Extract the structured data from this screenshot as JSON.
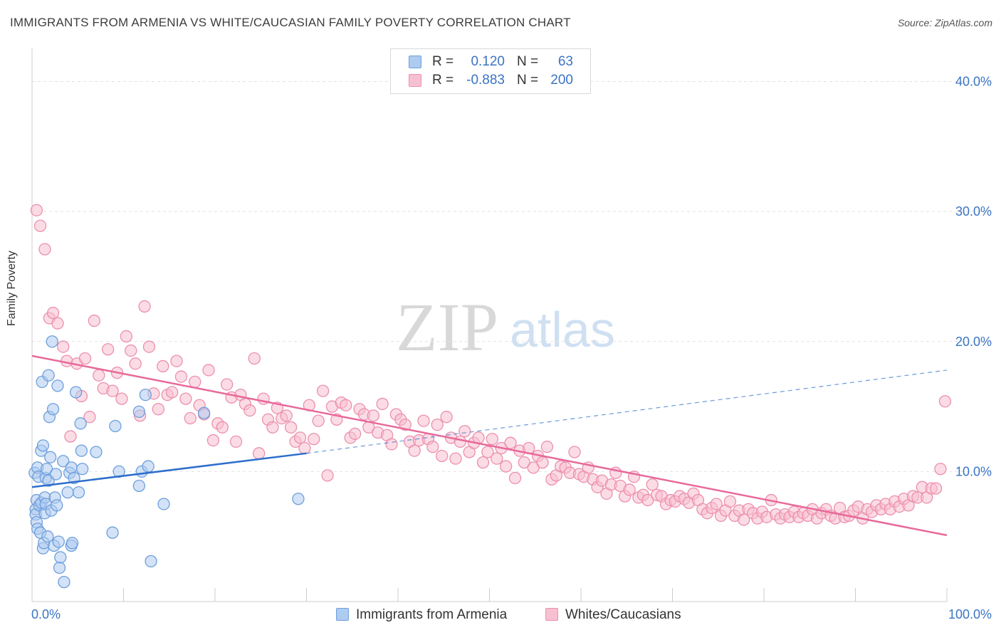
{
  "title": "IMMIGRANTS FROM ARMENIA VS WHITE/CAUCASIAN FAMILY POVERTY CORRELATION CHART",
  "source": "Source: ZipAtlas.com",
  "watermark": {
    "zip": "ZIP",
    "atlas": "atlas"
  },
  "legend": {
    "rows": [
      {
        "r_label": "R =",
        "r_value": "0.120",
        "n_label": "N =",
        "n_value": "63"
      },
      {
        "r_label": "R =",
        "r_value": "-0.883",
        "n_label": "N =",
        "n_value": "200"
      }
    ]
  },
  "bottom_legend": [
    "Immigrants from Armenia",
    "Whites/Caucasians"
  ],
  "colors": {
    "blue_fill": "#aecbf0",
    "blue_stroke": "#6d9fdc",
    "blue_line": "#2d6fcc",
    "pink_fill": "#f7c0d0",
    "pink_stroke": "#ec8fae",
    "pink_line": "#e8699a",
    "grid": "#e2e2e2",
    "tick_text": "#3a74c4"
  },
  "chart_data": {
    "type": "scatter",
    "title": "IMMIGRANTS FROM ARMENIA VS WHITE/CAUCASIAN FAMILY POVERTY CORRELATION CHART",
    "xlabel": "",
    "ylabel": "Family Poverty",
    "xlim": [
      0,
      100
    ],
    "ylim": [
      0,
      42
    ],
    "x_tick_labels": [
      "0.0%",
      "100.0%"
    ],
    "y_ticks": [
      10,
      20,
      30,
      40
    ],
    "y_tick_labels": [
      "10.0%",
      "20.0%",
      "30.0%",
      "40.0%"
    ],
    "grid": "horizontal dashed",
    "legend_position": "top-center",
    "series": [
      {
        "name": "Immigrants from Armenia",
        "R": 0.12,
        "N": 63,
        "trend": {
          "x": [
            0,
            30
          ],
          "y": [
            8.8,
            11.4
          ],
          "dashed_to": [
            100,
            17.8
          ]
        },
        "points": [
          [
            0.3,
            9.9
          ],
          [
            0.4,
            7.1
          ],
          [
            0.4,
            6.7
          ],
          [
            0.5,
            6.1
          ],
          [
            0.5,
            7.8
          ],
          [
            0.6,
            5.6
          ],
          [
            0.6,
            10.3
          ],
          [
            0.7,
            9.6
          ],
          [
            0.8,
            7.4
          ],
          [
            0.9,
            5.3
          ],
          [
            1.0,
            7.6
          ],
          [
            1.0,
            11.6
          ],
          [
            1.1,
            16.9
          ],
          [
            1.2,
            12.0
          ],
          [
            1.2,
            4.1
          ],
          [
            1.3,
            4.5
          ],
          [
            1.4,
            8.0
          ],
          [
            1.4,
            6.8
          ],
          [
            1.5,
            9.5
          ],
          [
            1.5,
            7.5
          ],
          [
            1.6,
            10.2
          ],
          [
            1.7,
            5.0
          ],
          [
            1.8,
            9.3
          ],
          [
            1.8,
            17.4
          ],
          [
            1.9,
            14.2
          ],
          [
            2.0,
            11.1
          ],
          [
            2.1,
            7.0
          ],
          [
            2.2,
            20.0
          ],
          [
            2.3,
            14.8
          ],
          [
            2.4,
            4.3
          ],
          [
            2.5,
            8.0
          ],
          [
            2.6,
            9.8
          ],
          [
            2.7,
            7.4
          ],
          [
            2.8,
            16.6
          ],
          [
            2.9,
            4.6
          ],
          [
            3.0,
            2.6
          ],
          [
            3.1,
            3.4
          ],
          [
            3.4,
            10.8
          ],
          [
            3.5,
            1.5
          ],
          [
            3.9,
            8.4
          ],
          [
            4.1,
            9.9
          ],
          [
            4.3,
            10.3
          ],
          [
            4.3,
            4.3
          ],
          [
            4.4,
            4.5
          ],
          [
            4.6,
            9.5
          ],
          [
            4.8,
            16.1
          ],
          [
            5.1,
            8.4
          ],
          [
            5.3,
            13.7
          ],
          [
            5.4,
            11.6
          ],
          [
            5.5,
            10.2
          ],
          [
            7.0,
            11.5
          ],
          [
            8.8,
            5.3
          ],
          [
            9.1,
            13.5
          ],
          [
            9.5,
            10.0
          ],
          [
            11.7,
            14.6
          ],
          [
            11.7,
            8.9
          ],
          [
            12.0,
            10.0
          ],
          [
            12.4,
            15.9
          ],
          [
            12.7,
            10.4
          ],
          [
            13.0,
            3.1
          ],
          [
            14.4,
            7.5
          ],
          [
            18.8,
            14.5
          ],
          [
            29.1,
            7.9
          ]
        ]
      },
      {
        "name": "Whites/Caucasians",
        "R": -0.883,
        "N": 200,
        "trend": {
          "x": [
            0,
            100
          ],
          "y": [
            18.9,
            5.1
          ]
        },
        "points": [
          [
            0.5,
            30.1
          ],
          [
            0.9,
            28.9
          ],
          [
            1.4,
            27.1
          ],
          [
            1.9,
            21.8
          ],
          [
            2.3,
            22.2
          ],
          [
            2.8,
            21.4
          ],
          [
            3.4,
            19.6
          ],
          [
            3.8,
            18.5
          ],
          [
            4.2,
            12.7
          ],
          [
            4.9,
            18.3
          ],
          [
            5.4,
            15.8
          ],
          [
            5.8,
            18.7
          ],
          [
            6.3,
            14.2
          ],
          [
            6.8,
            21.6
          ],
          [
            7.3,
            17.4
          ],
          [
            7.8,
            16.4
          ],
          [
            8.3,
            19.4
          ],
          [
            8.8,
            16.2
          ],
          [
            9.3,
            17.6
          ],
          [
            9.8,
            15.6
          ],
          [
            10.3,
            20.4
          ],
          [
            10.8,
            19.3
          ],
          [
            11.3,
            18.3
          ],
          [
            11.8,
            14.3
          ],
          [
            12.3,
            22.7
          ],
          [
            12.8,
            19.6
          ],
          [
            13.3,
            16.0
          ],
          [
            13.8,
            14.8
          ],
          [
            14.3,
            18.1
          ],
          [
            14.8,
            15.9
          ],
          [
            15.3,
            16.1
          ],
          [
            15.8,
            18.5
          ],
          [
            16.3,
            17.3
          ],
          [
            16.8,
            15.6
          ],
          [
            17.3,
            14.1
          ],
          [
            17.8,
            16.9
          ],
          [
            18.3,
            15.1
          ],
          [
            18.8,
            14.4
          ],
          [
            19.3,
            17.8
          ],
          [
            19.8,
            12.4
          ],
          [
            20.3,
            13.7
          ],
          [
            20.8,
            13.4
          ],
          [
            21.3,
            16.7
          ],
          [
            21.8,
            15.7
          ],
          [
            22.3,
            12.3
          ],
          [
            22.8,
            15.9
          ],
          [
            23.3,
            15.2
          ],
          [
            23.8,
            14.7
          ],
          [
            24.3,
            18.7
          ],
          [
            24.8,
            11.4
          ],
          [
            25.3,
            15.6
          ],
          [
            25.8,
            14.0
          ],
          [
            26.3,
            13.4
          ],
          [
            26.8,
            14.9
          ],
          [
            27.3,
            14.1
          ],
          [
            27.8,
            14.3
          ],
          [
            28.3,
            13.4
          ],
          [
            28.8,
            12.3
          ],
          [
            29.3,
            12.6
          ],
          [
            29.8,
            11.8
          ],
          [
            30.3,
            15.1
          ],
          [
            30.8,
            12.5
          ],
          [
            31.3,
            13.9
          ],
          [
            31.8,
            16.2
          ],
          [
            32.3,
            9.7
          ],
          [
            32.8,
            15.0
          ],
          [
            33.3,
            14.0
          ],
          [
            33.8,
            15.3
          ],
          [
            34.3,
            15.1
          ],
          [
            34.8,
            12.6
          ],
          [
            35.3,
            12.9
          ],
          [
            35.8,
            14.8
          ],
          [
            36.3,
            14.4
          ],
          [
            36.8,
            13.4
          ],
          [
            37.3,
            14.3
          ],
          [
            37.8,
            13.0
          ],
          [
            38.3,
            15.2
          ],
          [
            38.8,
            12.8
          ],
          [
            39.3,
            12.1
          ],
          [
            39.8,
            14.4
          ],
          [
            40.3,
            14.0
          ],
          [
            40.8,
            13.6
          ],
          [
            41.3,
            12.3
          ],
          [
            41.8,
            11.6
          ],
          [
            42.3,
            12.4
          ],
          [
            42.8,
            13.9
          ],
          [
            43.3,
            12.5
          ],
          [
            43.8,
            11.9
          ],
          [
            44.3,
            13.6
          ],
          [
            44.8,
            11.2
          ],
          [
            45.3,
            14.2
          ],
          [
            45.8,
            12.6
          ],
          [
            46.3,
            11.0
          ],
          [
            46.8,
            12.3
          ],
          [
            47.3,
            13.1
          ],
          [
            47.8,
            11.5
          ],
          [
            48.3,
            12.2
          ],
          [
            48.8,
            12.6
          ],
          [
            49.3,
            10.7
          ],
          [
            49.8,
            11.5
          ],
          [
            50.3,
            12.5
          ],
          [
            50.8,
            11.0
          ],
          [
            51.3,
            11.8
          ],
          [
            51.8,
            10.4
          ],
          [
            52.3,
            12.2
          ],
          [
            52.8,
            9.5
          ],
          [
            53.3,
            11.6
          ],
          [
            53.8,
            10.7
          ],
          [
            54.3,
            11.8
          ],
          [
            54.8,
            10.3
          ],
          [
            55.3,
            11.2
          ],
          [
            55.8,
            10.7
          ],
          [
            56.3,
            11.9
          ],
          [
            56.8,
            9.4
          ],
          [
            57.3,
            9.7
          ],
          [
            57.8,
            10.4
          ],
          [
            58.3,
            10.3
          ],
          [
            58.8,
            9.9
          ],
          [
            59.3,
            11.5
          ],
          [
            59.8,
            9.8
          ],
          [
            60.3,
            9.6
          ],
          [
            60.8,
            10.3
          ],
          [
            61.3,
            9.4
          ],
          [
            61.8,
            8.8
          ],
          [
            62.3,
            9.3
          ],
          [
            62.8,
            8.3
          ],
          [
            63.3,
            9.0
          ],
          [
            63.8,
            9.9
          ],
          [
            64.3,
            8.9
          ],
          [
            64.8,
            8.1
          ],
          [
            65.3,
            8.6
          ],
          [
            65.8,
            9.6
          ],
          [
            66.3,
            8.0
          ],
          [
            66.8,
            8.2
          ],
          [
            67.3,
            7.8
          ],
          [
            67.8,
            9.0
          ],
          [
            68.3,
            8.2
          ],
          [
            68.8,
            8.1
          ],
          [
            69.3,
            7.5
          ],
          [
            69.8,
            7.8
          ],
          [
            70.3,
            7.7
          ],
          [
            70.8,
            8.1
          ],
          [
            71.3,
            7.9
          ],
          [
            71.8,
            7.6
          ],
          [
            72.3,
            8.3
          ],
          [
            72.8,
            7.8
          ],
          [
            73.3,
            7.1
          ],
          [
            73.8,
            6.8
          ],
          [
            74.3,
            7.2
          ],
          [
            74.8,
            7.5
          ],
          [
            75.3,
            6.6
          ],
          [
            75.8,
            7.0
          ],
          [
            76.3,
            7.7
          ],
          [
            76.8,
            6.6
          ],
          [
            77.3,
            7.0
          ],
          [
            77.8,
            6.3
          ],
          [
            78.3,
            7.1
          ],
          [
            78.8,
            6.8
          ],
          [
            79.3,
            6.4
          ],
          [
            79.8,
            6.9
          ],
          [
            80.3,
            6.5
          ],
          [
            80.8,
            7.8
          ],
          [
            81.3,
            6.7
          ],
          [
            81.8,
            6.4
          ],
          [
            82.3,
            6.7
          ],
          [
            82.8,
            6.5
          ],
          [
            83.3,
            6.9
          ],
          [
            83.8,
            6.5
          ],
          [
            84.3,
            6.8
          ],
          [
            84.8,
            6.6
          ],
          [
            85.3,
            7.1
          ],
          [
            85.8,
            6.4
          ],
          [
            86.3,
            6.8
          ],
          [
            86.8,
            7.1
          ],
          [
            87.3,
            6.6
          ],
          [
            87.8,
            6.4
          ],
          [
            88.3,
            7.2
          ],
          [
            88.8,
            6.5
          ],
          [
            89.3,
            6.6
          ],
          [
            89.8,
            7.0
          ],
          [
            90.3,
            7.3
          ],
          [
            90.8,
            6.4
          ],
          [
            91.3,
            7.1
          ],
          [
            91.8,
            6.9
          ],
          [
            92.3,
            7.4
          ],
          [
            92.8,
            7.1
          ],
          [
            93.3,
            7.5
          ],
          [
            93.8,
            7.1
          ],
          [
            94.3,
            7.7
          ],
          [
            94.8,
            7.3
          ],
          [
            95.3,
            7.9
          ],
          [
            95.8,
            7.4
          ],
          [
            96.3,
            8.1
          ],
          [
            96.8,
            8.0
          ],
          [
            97.3,
            8.8
          ],
          [
            97.8,
            8.0
          ],
          [
            98.3,
            8.7
          ],
          [
            98.8,
            8.7
          ],
          [
            99.3,
            10.2
          ],
          [
            99.8,
            15.4
          ]
        ]
      }
    ]
  }
}
